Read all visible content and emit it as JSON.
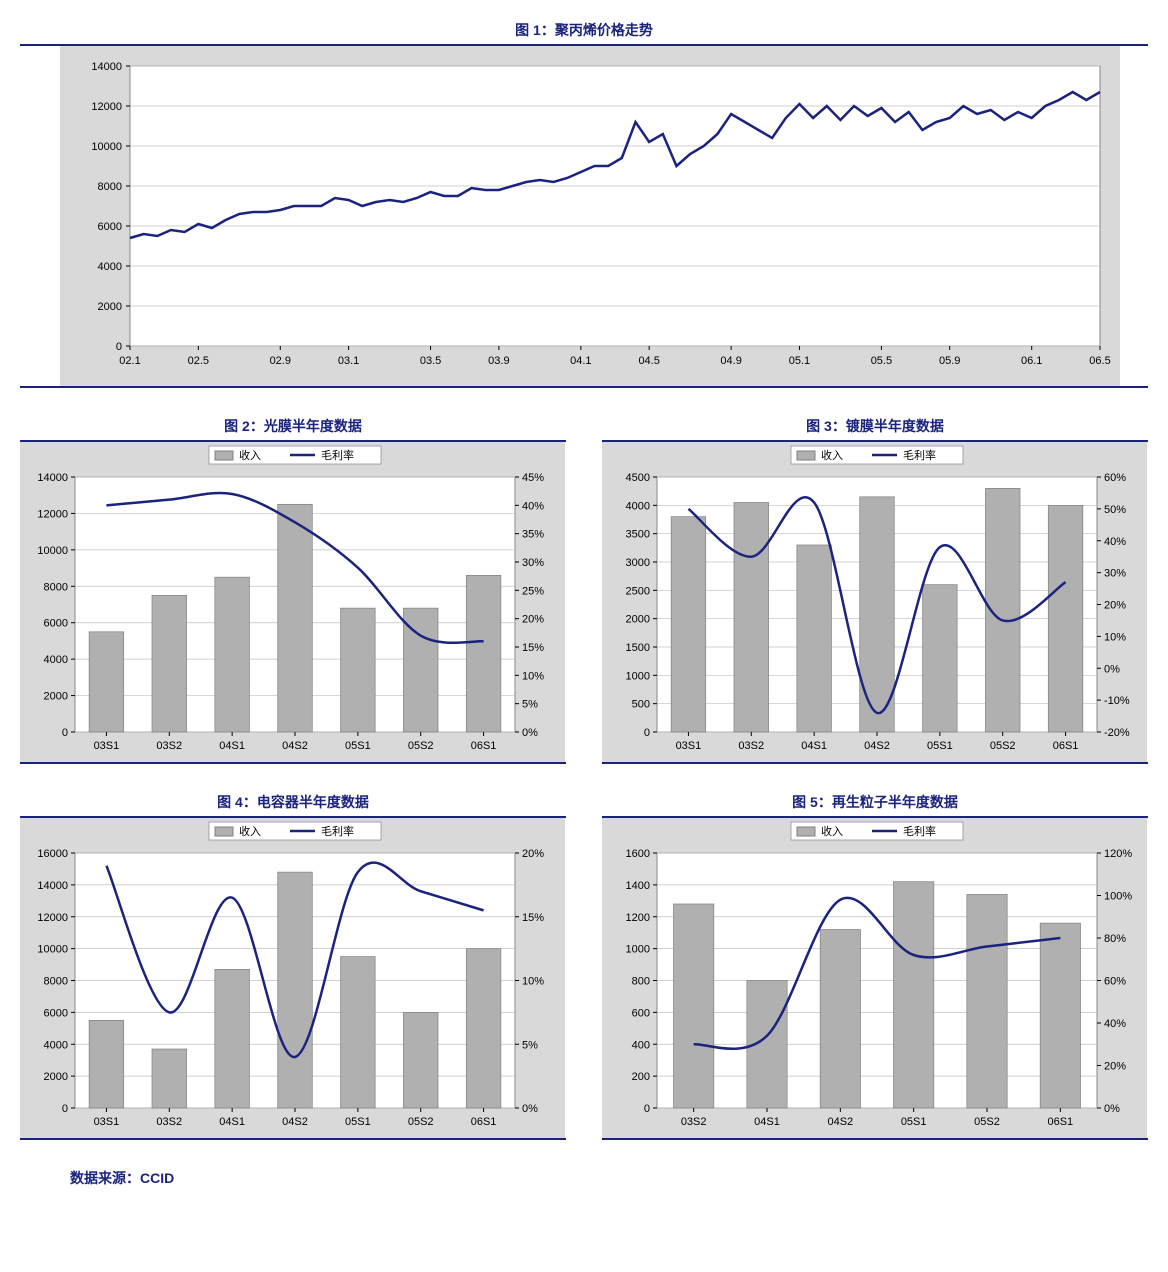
{
  "source_label": "数据来源：CCID",
  "legend_labels": {
    "revenue": "收入",
    "margin": "毛利率"
  },
  "colors": {
    "line": "#1a237e",
    "bar": "#b0b0b0",
    "bar_border": "#808080",
    "grid": "#c0c0c0",
    "axis": "#000000",
    "plot_bg": "#ffffff",
    "outer_bg": "#d9d9d9",
    "legend_bg": "#ffffff"
  },
  "chart1": {
    "title": "图 1：聚丙烯价格走势",
    "type": "line",
    "x_labels": [
      "02.1",
      "02.5",
      "02.9",
      "03.1",
      "03.5",
      "03.9",
      "04.1",
      "04.5",
      "04.9",
      "05.1",
      "05.5",
      "05.9",
      "06.1",
      "06.5"
    ],
    "y_ticks": [
      0,
      2000,
      4000,
      6000,
      8000,
      10000,
      12000,
      14000
    ],
    "ylim": [
      0,
      14000
    ],
    "values": [
      5400,
      5600,
      5500,
      5800,
      5700,
      6100,
      5900,
      6300,
      6600,
      6700,
      6700,
      6800,
      7000,
      7000,
      7000,
      7400,
      7300,
      7000,
      7200,
      7300,
      7200,
      7400,
      7700,
      7500,
      7500,
      7900,
      7800,
      7800,
      8000,
      8200,
      8300,
      8200,
      8400,
      8700,
      9000,
      9000,
      9400,
      11200,
      10200,
      10600,
      9000,
      9600,
      10000,
      10600,
      11600,
      11200,
      10800,
      10400,
      11400,
      12100,
      11400,
      12000,
      11300,
      12000,
      11500,
      11900,
      11200,
      11700,
      10800,
      11200,
      11400,
      12000,
      11600,
      11800,
      11300,
      11700,
      11400,
      12000,
      12300,
      12700,
      12300,
      12700
    ],
    "line_width": 2.5
  },
  "chart2": {
    "title": "图 2：光膜半年度数据",
    "type": "bar-line",
    "categories": [
      "03S1",
      "03S2",
      "04S1",
      "04S2",
      "05S1",
      "05S2",
      "06S1"
    ],
    "bars": [
      5500,
      7500,
      8500,
      12500,
      6800,
      6800,
      8600
    ],
    "y1_ticks": [
      0,
      2000,
      4000,
      6000,
      8000,
      10000,
      12000,
      14000
    ],
    "y1_lim": [
      0,
      14000
    ],
    "lines": [
      40,
      41,
      42,
      37,
      29,
      17,
      16
    ],
    "y2_ticks": [
      0,
      5,
      10,
      15,
      20,
      25,
      30,
      35,
      40,
      45
    ],
    "y2_lim": [
      0,
      45
    ],
    "y2_suffix": "%"
  },
  "chart3": {
    "title": "图 3：镀膜半年度数据",
    "type": "bar-line",
    "categories": [
      "03S1",
      "03S2",
      "04S1",
      "04S2",
      "05S1",
      "05S2",
      "06S1"
    ],
    "bars": [
      3800,
      4050,
      3300,
      4150,
      2600,
      4300,
      4000
    ],
    "y1_ticks": [
      0,
      500,
      1000,
      1500,
      2000,
      2500,
      3000,
      3500,
      4000,
      4500
    ],
    "y1_lim": [
      0,
      4500
    ],
    "lines": [
      50,
      35,
      52,
      -14,
      38,
      15,
      27
    ],
    "y2_ticks": [
      -20,
      -10,
      0,
      10,
      20,
      30,
      40,
      50,
      60
    ],
    "y2_lim": [
      -20,
      60
    ],
    "y2_suffix": "%"
  },
  "chart4": {
    "title": "图 4：电容器半年度数据",
    "type": "bar-line",
    "categories": [
      "03S1",
      "03S2",
      "04S1",
      "04S2",
      "05S1",
      "05S2",
      "06S1"
    ],
    "bars": [
      5500,
      3700,
      8700,
      14800,
      9500,
      6000,
      10000
    ],
    "y1_ticks": [
      0,
      2000,
      4000,
      6000,
      8000,
      10000,
      12000,
      14000,
      16000
    ],
    "y1_lim": [
      0,
      16000
    ],
    "lines": [
      19,
      7.5,
      16.5,
      4,
      18.5,
      17,
      15.5
    ],
    "y2_ticks": [
      0,
      5,
      10,
      15,
      20
    ],
    "y2_lim": [
      0,
      20
    ],
    "y2_suffix": "%"
  },
  "chart5": {
    "title": "图 5：再生粒子半年度数据",
    "type": "bar-line",
    "categories": [
      "03S2",
      "04S1",
      "04S2",
      "05S1",
      "05S2",
      "06S1"
    ],
    "bars": [
      1280,
      800,
      1120,
      1420,
      1340,
      1160
    ],
    "y1_ticks": [
      0,
      200,
      400,
      600,
      800,
      1000,
      1200,
      1400,
      1600
    ],
    "y1_lim": [
      0,
      1600
    ],
    "lines": [
      30,
      34,
      98,
      72,
      76,
      80
    ],
    "y2_ticks": [
      0,
      20,
      40,
      60,
      80,
      100,
      120
    ],
    "y2_lim": [
      0,
      120
    ],
    "y2_suffix": "%"
  }
}
